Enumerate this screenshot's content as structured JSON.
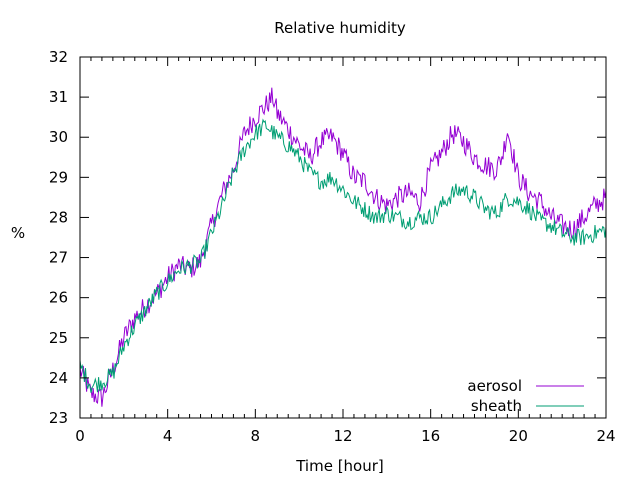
{
  "chart_data": {
    "type": "line",
    "title": "Relative humidity",
    "xlabel": "Time [hour]",
    "ylabel": "%",
    "xlim": [
      0,
      24
    ],
    "ylim": [
      23,
      32
    ],
    "xticks": [
      0,
      4,
      8,
      12,
      16,
      20,
      24
    ],
    "xtick_labels": [
      "0",
      "4",
      "8",
      "12",
      "16",
      "20",
      "24"
    ],
    "yticks": [
      23,
      24,
      25,
      26,
      27,
      28,
      29,
      30,
      31,
      32
    ],
    "ytick_labels": [
      "23",
      "24",
      "25",
      "26",
      "27",
      "28",
      "29",
      "30",
      "31",
      "32"
    ],
    "grid": false,
    "legend_position": "bottom-right",
    "series": [
      {
        "name": "aerosol",
        "color": "#9400d3",
        "x": [
          0,
          0.5,
          1,
          1.5,
          2,
          2.5,
          3,
          3.5,
          4,
          4.5,
          5,
          5.5,
          6,
          6.5,
          7,
          7.5,
          8,
          8.5,
          8.8,
          9,
          9.5,
          10,
          10.5,
          11,
          11.5,
          12,
          12.5,
          13,
          13.5,
          14,
          14.5,
          15,
          15.5,
          16,
          16.5,
          17,
          17.5,
          18,
          18.5,
          19,
          19.3,
          19.5,
          20,
          20.5,
          21,
          21.5,
          22,
          22.5,
          23,
          23.5,
          24
        ],
        "y": [
          24.2,
          23.6,
          23.5,
          24.2,
          25.0,
          25.5,
          25.8,
          26.1,
          26.5,
          26.8,
          26.7,
          26.9,
          27.8,
          28.6,
          29.2,
          30.1,
          30.5,
          30.8,
          31.0,
          30.6,
          30.2,
          29.8,
          29.5,
          29.9,
          30.0,
          29.6,
          29.0,
          28.9,
          28.5,
          28.3,
          28.5,
          28.6,
          28.4,
          29.2,
          29.6,
          30.1,
          29.9,
          29.5,
          29.3,
          29.2,
          29.6,
          30.2,
          29.0,
          28.6,
          28.4,
          28.0,
          27.8,
          27.7,
          28.0,
          28.3,
          28.5
        ]
      },
      {
        "name": "sheath",
        "color": "#009e73",
        "x": [
          0,
          0.5,
          1,
          1.5,
          2,
          2.5,
          3,
          3.5,
          4,
          4.5,
          5,
          5.5,
          6,
          6.5,
          7,
          7.5,
          8,
          8.5,
          9,
          9.5,
          10,
          10.5,
          11,
          11.5,
          12,
          12.5,
          13,
          13.5,
          14,
          14.5,
          15,
          15.5,
          16,
          16.5,
          17,
          17.5,
          18,
          18.5,
          19,
          19.5,
          20,
          20.5,
          21,
          21.5,
          22,
          22.5,
          23,
          23.5,
          24
        ],
        "y": [
          24.3,
          23.8,
          23.9,
          24.1,
          24.8,
          25.3,
          25.7,
          26.1,
          26.4,
          26.7,
          26.8,
          26.9,
          27.6,
          28.3,
          29.1,
          29.7,
          30.1,
          30.3,
          30.0,
          29.8,
          29.5,
          29.1,
          28.9,
          29.0,
          28.7,
          28.4,
          28.2,
          28.0,
          28.1,
          28.0,
          27.9,
          28.0,
          28.0,
          28.3,
          28.6,
          28.7,
          28.5,
          28.2,
          28.1,
          28.5,
          28.4,
          28.2,
          27.9,
          27.8,
          27.6,
          27.5,
          27.5,
          27.6,
          27.7
        ]
      }
    ]
  }
}
